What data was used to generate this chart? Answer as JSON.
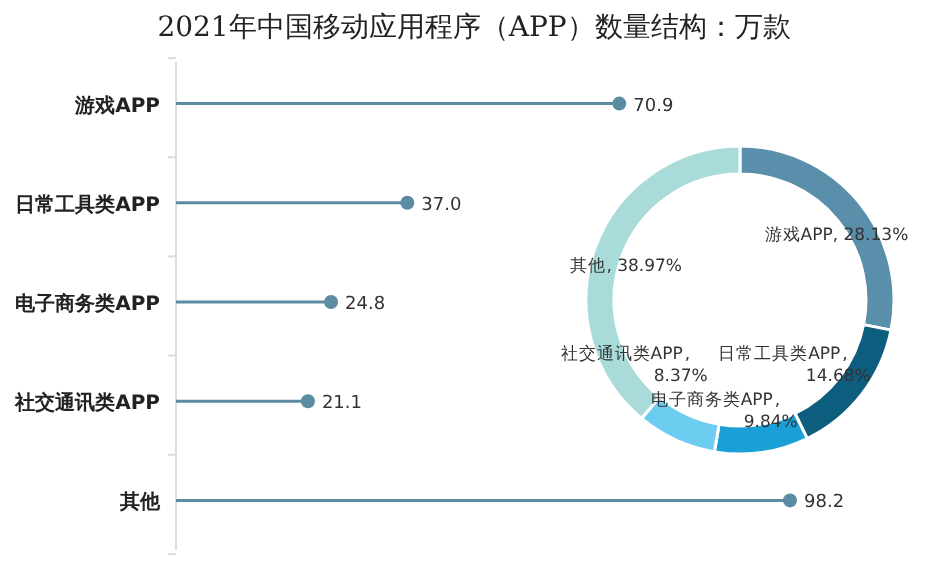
{
  "chart_data": [
    {
      "type": "lollipop",
      "title": "2021年中国移动应用程序（APP）数量结构：万款",
      "orientation": "horizontal",
      "categories": [
        "游戏APP",
        "日常工具类APP",
        "电子商务类APP",
        "社交通讯类APP",
        "其他"
      ],
      "values": [
        70.9,
        37.0,
        24.8,
        21.1,
        98.2
      ],
      "value_labels": [
        "70.9",
        "37.0",
        "24.8",
        "21.1",
        "98.2"
      ],
      "color": "#5b8ca3"
    },
    {
      "type": "donut",
      "categories": [
        "游戏APP",
        "日常工具类APP",
        "电子商务类APP",
        "社交通讯类APP",
        "其他"
      ],
      "values": [
        28.13,
        14.68,
        9.84,
        8.37,
        38.97
      ],
      "value_labels": [
        ", 28.13%",
        ", 14.68%",
        ", 9.84%",
        ", 8.37%",
        ", 38.97%"
      ],
      "colors": [
        "#5a8fab",
        "#0d5d7f",
        "#1aa0d6",
        "#6dcdf0",
        "#a9dbdb"
      ]
    }
  ]
}
